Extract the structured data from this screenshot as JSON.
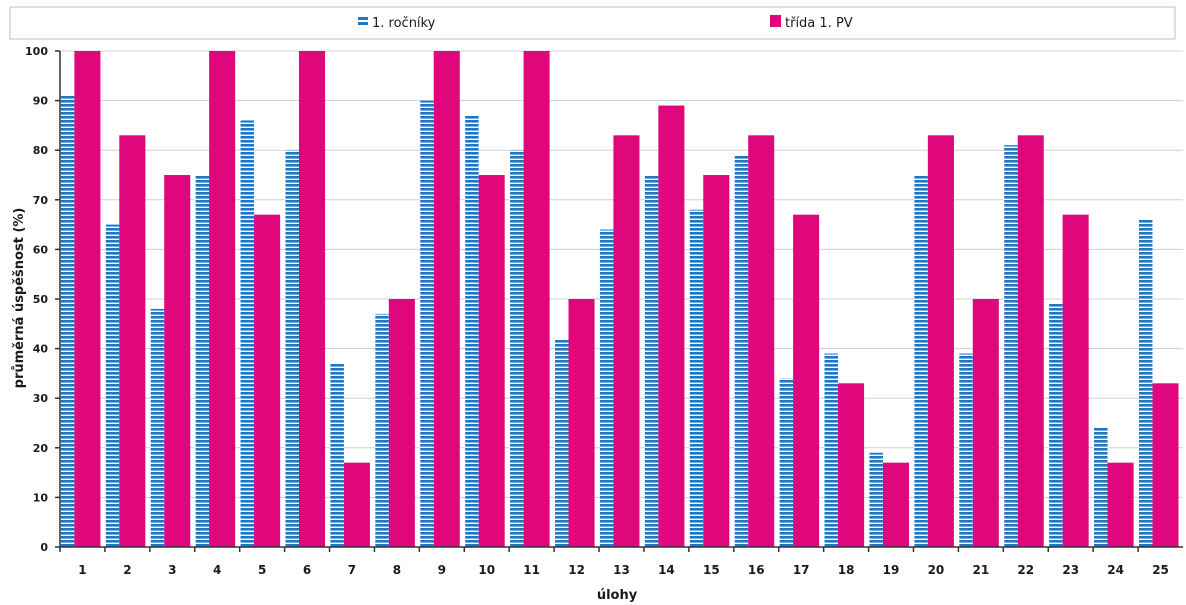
{
  "chart_data": {
    "type": "bar",
    "xlabel": "úlohy",
    "ylabel": "průměrná úspěšnost (%)",
    "ylim": [
      0,
      100
    ],
    "yticks": [
      0,
      10,
      20,
      30,
      40,
      50,
      60,
      70,
      80,
      90,
      100
    ],
    "grid": true,
    "legend_position": "top",
    "categories": [
      "1",
      "2",
      "3",
      "4",
      "5",
      "6",
      "7",
      "8",
      "9",
      "10",
      "11",
      "12",
      "13",
      "14",
      "15",
      "16",
      "17",
      "18",
      "19",
      "20",
      "21",
      "22",
      "23",
      "24",
      "25"
    ],
    "series": [
      {
        "name": "1. ročníky",
        "color": "#1f77c4",
        "pattern": "horizontal-stripes",
        "values": [
          91,
          65,
          48,
          75,
          86,
          80,
          37,
          47,
          90,
          87,
          80,
          42,
          64,
          75,
          68,
          79,
          34,
          39,
          19,
          75,
          39,
          81,
          49,
          24,
          66
        ]
      },
      {
        "name": "třída 1. PV",
        "color": "#e0077d",
        "pattern": "solid",
        "values": [
          100,
          83,
          75,
          100,
          67,
          100,
          17,
          50,
          100,
          75,
          100,
          50,
          83,
          89,
          75,
          83,
          67,
          33,
          17,
          83,
          50,
          83,
          67,
          17,
          33
        ]
      }
    ]
  }
}
